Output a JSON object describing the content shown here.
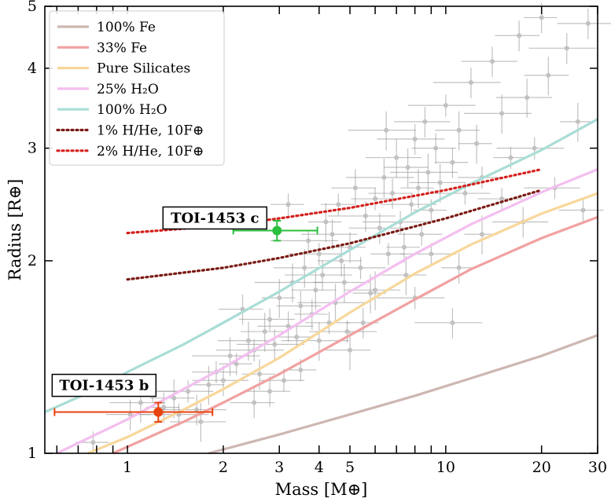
{
  "chart_data": {
    "type": "scatter",
    "xlabel": "Mass [M⊕]",
    "ylabel": "Radius [R⊕]",
    "x_scale": "log",
    "y_scale": "log",
    "xlim": [
      0.55,
      30
    ],
    "ylim": [
      1,
      5
    ],
    "x_ticks": [
      {
        "value": 1,
        "label": "1"
      },
      {
        "value": 2,
        "label": "2"
      },
      {
        "value": 3,
        "label": "3"
      },
      {
        "value": 4,
        "label": "4"
      },
      {
        "value": 5,
        "label": "5"
      },
      {
        "value": 10,
        "label": "10"
      },
      {
        "value": 20,
        "label": "20"
      },
      {
        "value": 30,
        "label": "30"
      }
    ],
    "x_minor_ticks": [
      0.6,
      0.7,
      0.8,
      0.9,
      6,
      7,
      8,
      9
    ],
    "y_ticks": [
      {
        "value": 1,
        "label": "1"
      },
      {
        "value": 2,
        "label": "2"
      },
      {
        "value": 3,
        "label": "3"
      },
      {
        "value": 4,
        "label": "4"
      },
      {
        "value": 5,
        "label": "5"
      }
    ],
    "grid": false,
    "legend": {
      "position": "top-left",
      "entries": [
        {
          "label": "100% Fe",
          "color": "#cdb7b2",
          "style": "solid"
        },
        {
          "label": "33% Fe",
          "color": "#f1a1a1",
          "style": "solid"
        },
        {
          "label": "Pure Silicates",
          "color": "#f7d79b",
          "style": "solid"
        },
        {
          "label": "25% H₂O",
          "color": "#f3bff0",
          "style": "solid"
        },
        {
          "label": "100% H₂O",
          "color": "#a9ddd6",
          "style": "solid"
        },
        {
          "label": "1% H/He, 10F⊕",
          "color": "#7a1a14",
          "style": "dotted"
        },
        {
          "label": "2% H/He, 10F⊕",
          "color": "#d4201c",
          "style": "dotted"
        }
      ]
    },
    "series": [
      {
        "name": "100% Fe",
        "color": "#cdb7b2",
        "style": "solid",
        "x": [
          1.8,
          3,
          5,
          8,
          12,
          20,
          30
        ],
        "y": [
          1.0,
          1.07,
          1.15,
          1.23,
          1.31,
          1.42,
          1.53
        ]
      },
      {
        "name": "33% Fe",
        "color": "#f1a1a1",
        "style": "solid",
        "x": [
          0.9,
          1.5,
          2,
          3,
          5,
          8,
          12,
          20,
          30
        ],
        "y": [
          1.0,
          1.12,
          1.2,
          1.33,
          1.53,
          1.74,
          1.94,
          2.17,
          2.34
        ]
      },
      {
        "name": "Pure Silicates",
        "color": "#f7d79b",
        "style": "solid",
        "x": [
          0.75,
          1,
          1.5,
          2,
          3,
          5,
          8,
          12,
          20,
          30
        ],
        "y": [
          1.0,
          1.06,
          1.17,
          1.26,
          1.41,
          1.66,
          1.91,
          2.12,
          2.37,
          2.55
        ]
      },
      {
        "name": "25% H₂O",
        "color": "#f3bff0",
        "style": "solid",
        "x": [
          0.6,
          1,
          1.5,
          2,
          3,
          5,
          8,
          12,
          20,
          30
        ],
        "y": [
          1.0,
          1.13,
          1.26,
          1.36,
          1.53,
          1.79,
          2.05,
          2.28,
          2.56,
          2.78
        ]
      },
      {
        "name": "100% H₂O",
        "color": "#a9ddd6",
        "style": "solid",
        "x": [
          0.55,
          0.8,
          1,
          1.5,
          2,
          3,
          5,
          8,
          12,
          20,
          30
        ],
        "y": [
          1.16,
          1.26,
          1.34,
          1.48,
          1.6,
          1.79,
          2.08,
          2.38,
          2.64,
          2.98,
          3.33
        ]
      },
      {
        "name": "1% H/He, 10F⊕",
        "color": "#7a1a14",
        "style": "dotted",
        "x": [
          1,
          2,
          3,
          5,
          10,
          20
        ],
        "y": [
          1.87,
          1.95,
          2.02,
          2.13,
          2.33,
          2.58
        ]
      },
      {
        "name": "2% H/He, 10F⊕",
        "color": "#d4201c",
        "style": "dotted",
        "x": [
          1,
          2,
          3,
          5,
          10,
          20
        ],
        "y": [
          2.21,
          2.27,
          2.33,
          2.42,
          2.58,
          2.78
        ]
      }
    ],
    "highlighted_points": [
      {
        "label": "TOI-1453 b",
        "x": 1.25,
        "y": 1.16,
        "xerr": [
          0.66,
          0.6
        ],
        "yerr": [
          0.04,
          0.04
        ],
        "color": "#e8420f"
      },
      {
        "label": "TOI-1453 c",
        "x": 2.95,
        "y": 2.23,
        "xerr": [
          0.8,
          1.0
        ],
        "yerr": [
          0.08,
          0.08
        ],
        "color": "#2bbf3e"
      }
    ],
    "background_points": {
      "color": "#909090",
      "points": [
        [
          0.78,
          1.04
        ],
        [
          1.02,
          1.15
        ],
        [
          1.1,
          1.2
        ],
        [
          1.2,
          1.25
        ],
        [
          1.3,
          1.18
        ],
        [
          1.4,
          1.22
        ],
        [
          1.55,
          1.25
        ],
        [
          1.65,
          1.17
        ],
        [
          1.8,
          1.28
        ],
        [
          1.9,
          1.34
        ],
        [
          2.0,
          1.3
        ],
        [
          2.1,
          1.42
        ],
        [
          2.2,
          1.38
        ],
        [
          2.3,
          1.68
        ],
        [
          2.4,
          1.5
        ],
        [
          2.5,
          1.45
        ],
        [
          2.6,
          1.33
        ],
        [
          2.7,
          1.55
        ],
        [
          2.8,
          1.62
        ],
        [
          2.9,
          1.48
        ],
        [
          3.0,
          1.75
        ],
        [
          3.1,
          1.3
        ],
        [
          3.2,
          1.58
        ],
        [
          3.3,
          1.85
        ],
        [
          3.4,
          1.52
        ],
        [
          3.5,
          1.7
        ],
        [
          3.6,
          1.95
        ],
        [
          3.7,
          2.15
        ],
        [
          3.8,
          1.65
        ],
        [
          3.9,
          1.8
        ],
        [
          4.0,
          2.05
        ],
        [
          4.1,
          1.9
        ],
        [
          4.2,
          2.3
        ],
        [
          4.3,
          1.6
        ],
        [
          4.4,
          2.2
        ],
        [
          4.5,
          1.72
        ],
        [
          4.6,
          2.45
        ],
        [
          4.7,
          2.0
        ],
        [
          4.8,
          1.85
        ],
        [
          4.9,
          1.55
        ],
        [
          5.0,
          2.1
        ],
        [
          5.2,
          2.6
        ],
        [
          5.4,
          1.95
        ],
        [
          5.6,
          2.35
        ],
        [
          5.8,
          1.78
        ],
        [
          6.0,
          2.5
        ],
        [
          6.2,
          2.25
        ],
        [
          6.4,
          2.7
        ],
        [
          6.6,
          2.05
        ],
        [
          6.8,
          2.55
        ],
        [
          7.0,
          2.9
        ],
        [
          7.2,
          2.3
        ],
        [
          7.4,
          2.1
        ],
        [
          7.6,
          2.8
        ],
        [
          7.8,
          2.45
        ],
        [
          8.0,
          3.1
        ],
        [
          8.2,
          2.6
        ],
        [
          8.4,
          2.2
        ],
        [
          8.6,
          3.3
        ],
        [
          8.8,
          2.75
        ],
        [
          9.0,
          2.4
        ],
        [
          9.3,
          3.0
        ],
        [
          9.6,
          2.65
        ],
        [
          10.0,
          3.5
        ],
        [
          10.5,
          2.85
        ],
        [
          11.0,
          3.2
        ],
        [
          11.5,
          2.55
        ],
        [
          12.0,
          3.8
        ],
        [
          12.5,
          3.05
        ],
        [
          13.0,
          2.7
        ],
        [
          14.0,
          4.1
        ],
        [
          15.0,
          3.4
        ],
        [
          16.0,
          2.9
        ],
        [
          17.0,
          4.5
        ],
        [
          18.0,
          3.6
        ],
        [
          19.0,
          3.0
        ],
        [
          20.0,
          4.8
        ],
        [
          21.0,
          3.9
        ],
        [
          22.0,
          2.6
        ],
        [
          24.0,
          4.3
        ],
        [
          26.0,
          3.3
        ],
        [
          27.0,
          2.4
        ],
        [
          28.0,
          4.7
        ],
        [
          6.5,
          3.2
        ],
        [
          3.2,
          2.45
        ],
        [
          2.5,
          1.2
        ],
        [
          1.7,
          1.12
        ],
        [
          1.45,
          1.15
        ],
        [
          5.5,
          1.6
        ],
        [
          7.5,
          1.9
        ],
        [
          9.0,
          2.05
        ],
        [
          10.5,
          1.6
        ],
        [
          13.0,
          2.2
        ],
        [
          15.0,
          2.5
        ],
        [
          17.5,
          2.3
        ],
        [
          4.0,
          1.5
        ],
        [
          3.5,
          1.35
        ],
        [
          2.8,
          1.25
        ],
        [
          6.0,
          1.8
        ],
        [
          8.0,
          1.75
        ],
        [
          11.0,
          1.95
        ],
        [
          5.0,
          1.45
        ]
      ]
    },
    "annotations": [
      {
        "text": "TOI-1453 c",
        "anchor_x": 2.95,
        "anchor_y": 2.23
      },
      {
        "text": "TOI-1453 b",
        "anchor_x": 1.25,
        "anchor_y": 1.16
      }
    ]
  }
}
